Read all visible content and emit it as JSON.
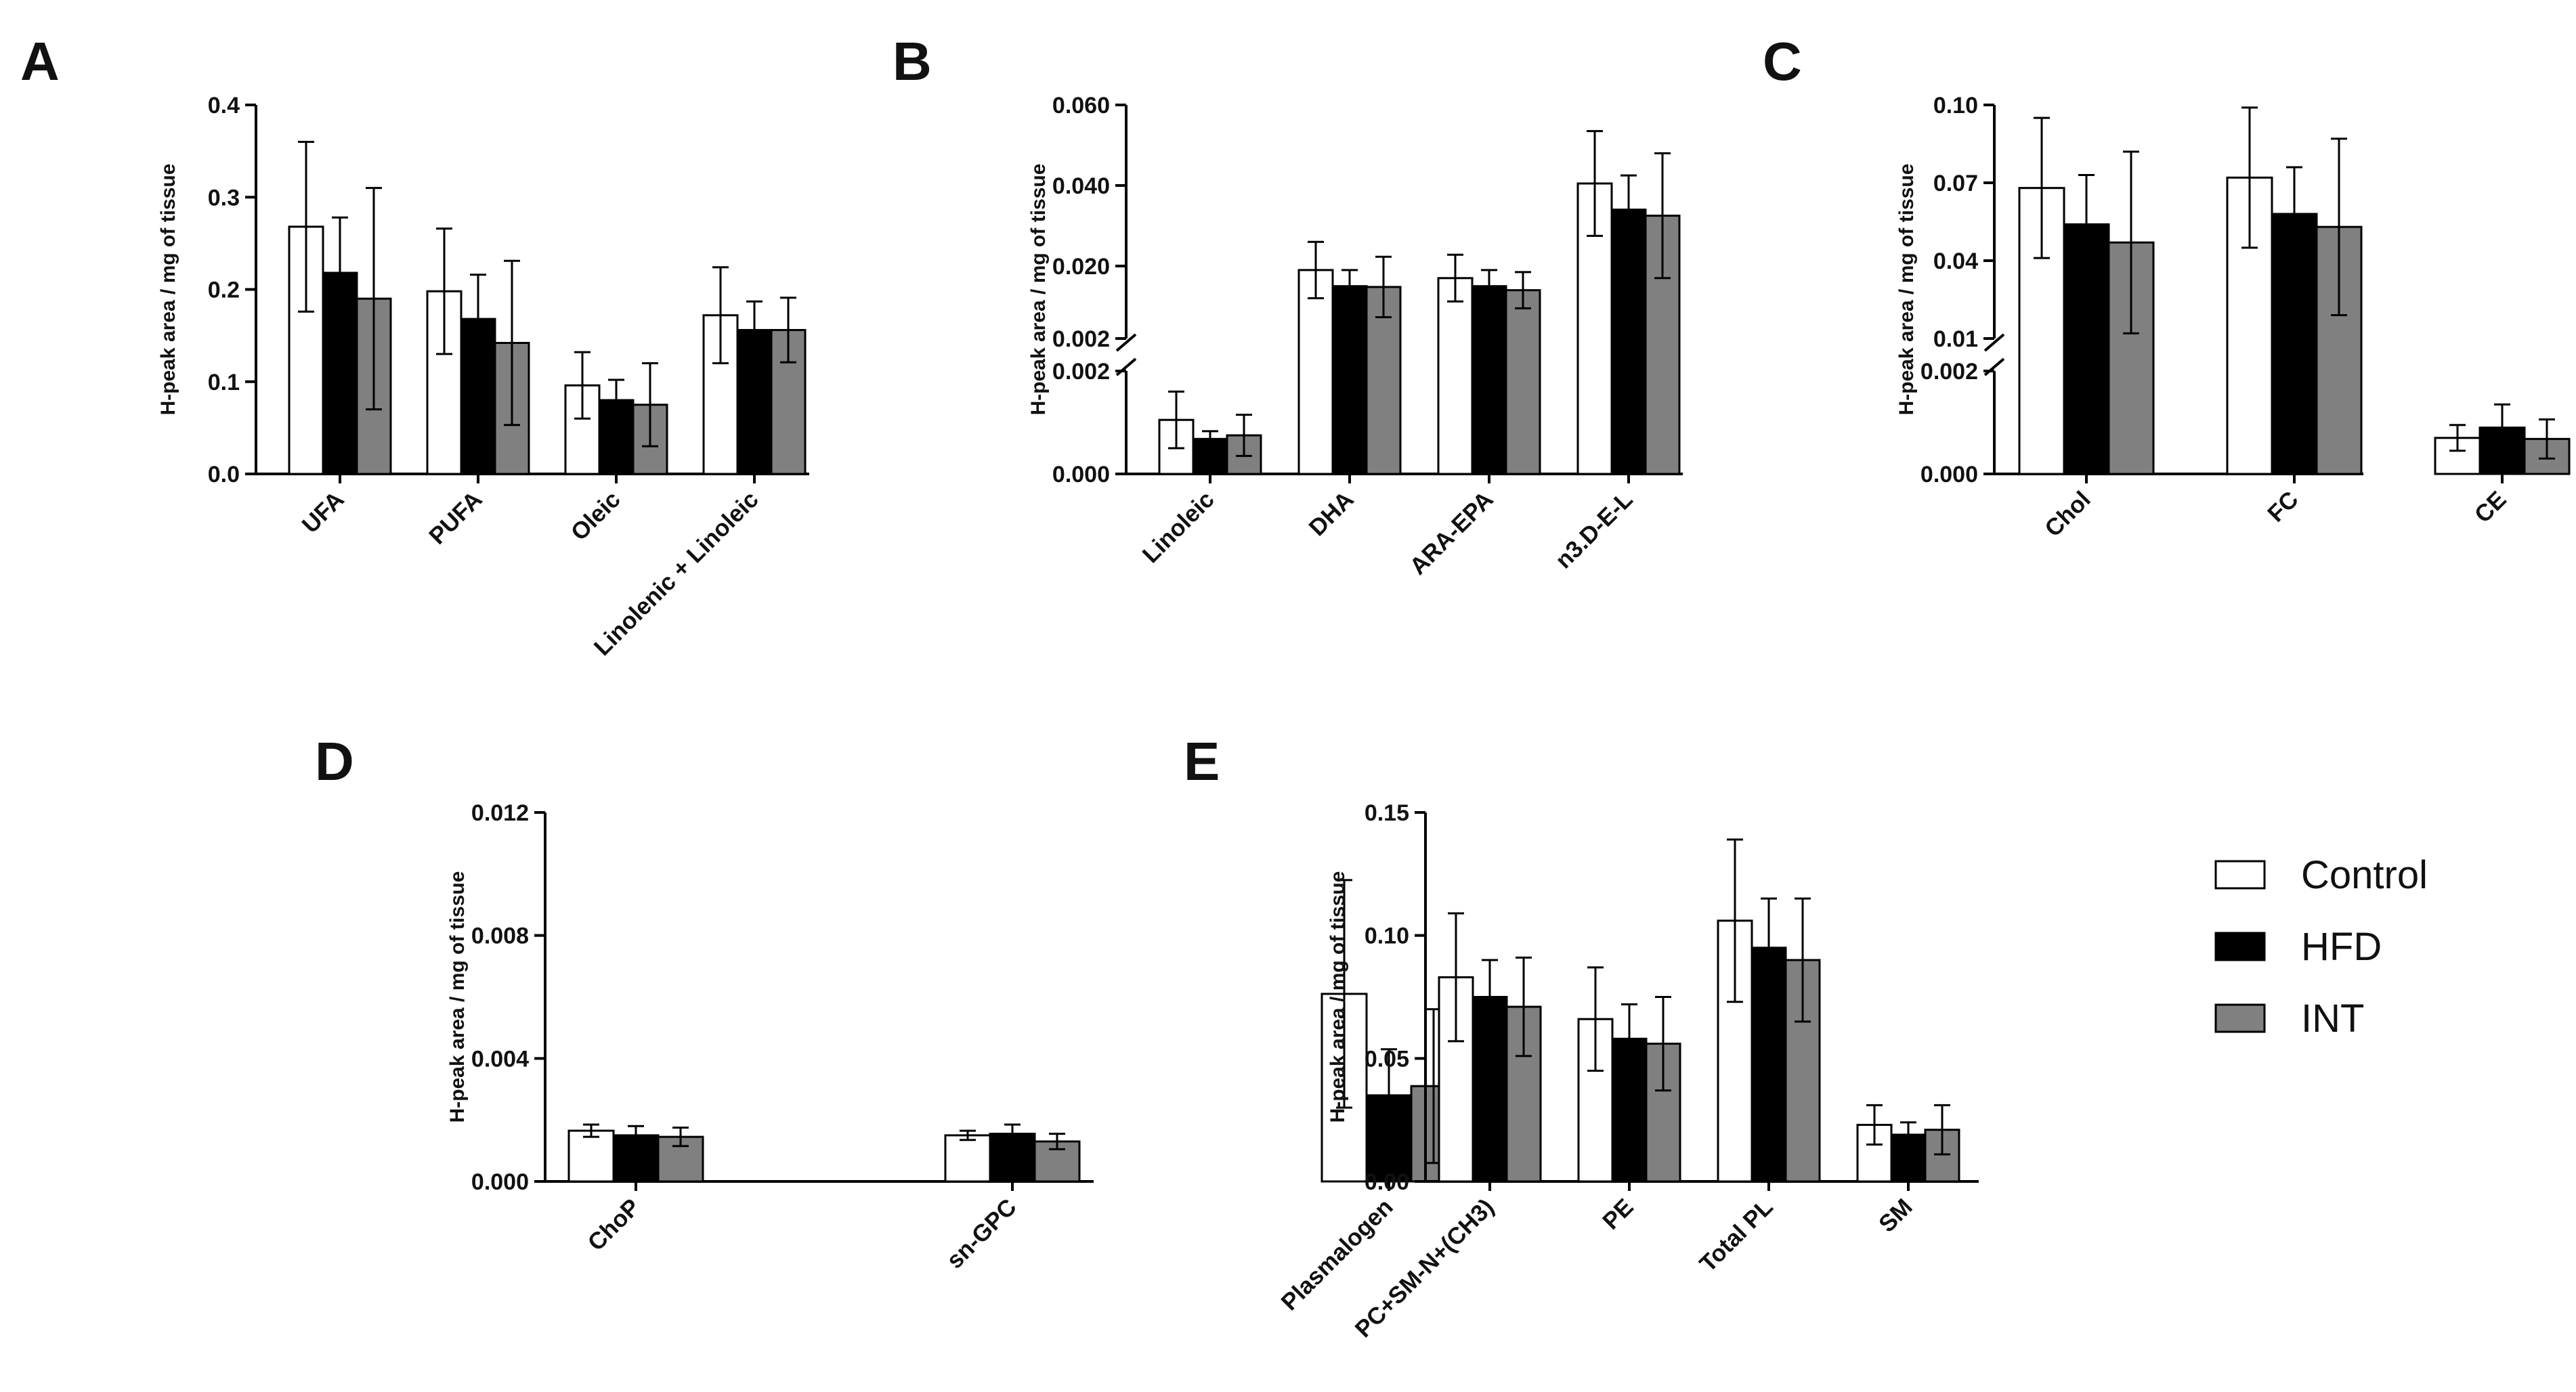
{
  "legend": [
    {
      "name": "Control",
      "color": "#ffffff"
    },
    {
      "name": "HFD",
      "color": "#000000"
    },
    {
      "name": "INT",
      "color": "#808080"
    }
  ],
  "chart_data": [
    {
      "panel": "A",
      "type": "bar",
      "ylabel": "H-peak area / mg of tissue",
      "ylim": [
        0,
        0.4
      ],
      "yticks": [
        "0.0",
        "0.1",
        "0.2",
        "0.3",
        "0.4"
      ],
      "categories": [
        "UFA",
        "PUFA",
        "Oleic",
        "Linolenic + Linoleic"
      ],
      "series": [
        {
          "name": "Control",
          "values": [
            0.268,
            0.198,
            0.096,
            0.172
          ],
          "errors": [
            0.092,
            0.068,
            0.036,
            0.052
          ]
        },
        {
          "name": "HFD",
          "values": [
            0.218,
            0.168,
            0.08,
            0.156
          ],
          "errors": [
            0.06,
            0.048,
            0.022,
            0.031
          ]
        },
        {
          "name": "INT",
          "values": [
            0.19,
            0.142,
            0.075,
            0.156
          ],
          "errors": [
            0.12,
            0.089,
            0.045,
            0.035
          ]
        }
      ]
    },
    {
      "panel": "B",
      "type": "bar",
      "ylabel": "H-peak area / mg of tissue",
      "axis_break": {
        "lower": [
          0,
          0.002
        ],
        "upper": [
          0.002,
          0.06
        ]
      },
      "yticks_lower": [
        "0.000",
        "0.002"
      ],
      "yticks_upper": [
        "0.002",
        "0.020",
        "0.040",
        "0.060"
      ],
      "categories": [
        "Linoleic",
        "DHA",
        "ARA-EPA",
        "n3.D-E-L"
      ],
      "series": [
        {
          "name": "Control",
          "values": [
            0.00105,
            0.019,
            0.017,
            0.0405
          ],
          "errors": [
            0.00055,
            0.007,
            0.0058,
            0.013
          ]
        },
        {
          "name": "HFD",
          "values": [
            0.00068,
            0.015,
            0.015,
            0.034
          ],
          "errors": [
            0.00015,
            0.004,
            0.004,
            0.0085
          ]
        },
        {
          "name": "INT",
          "values": [
            0.00075,
            0.0148,
            0.014,
            0.0325
          ],
          "errors": [
            0.0004,
            0.0075,
            0.0045,
            0.0155
          ]
        }
      ]
    },
    {
      "panel": "C",
      "type": "bar",
      "ylabel": "H-peak area / mg of tissue",
      "axis_break": {
        "lower": [
          0,
          0.002
        ],
        "upper": [
          0.01,
          0.1
        ]
      },
      "yticks_lower": [
        "0.000",
        "0.002"
      ],
      "yticks_upper": [
        "0.01",
        "0.04",
        "0.07",
        "0.10"
      ],
      "categories": [
        "Chol",
        "FC",
        "CE"
      ],
      "series": [
        {
          "name": "Control",
          "values": [
            0.068,
            0.072,
            0.0007
          ],
          "errors": [
            0.027,
            0.027,
            0.00025
          ]
        },
        {
          "name": "HFD",
          "values": [
            0.054,
            0.058,
            0.0009
          ],
          "errors": [
            0.019,
            0.018,
            0.00045
          ]
        },
        {
          "name": "INT",
          "values": [
            0.047,
            0.053,
            0.00068
          ],
          "errors": [
            0.035,
            0.034,
            0.00038
          ]
        }
      ]
    },
    {
      "panel": "D",
      "type": "bar",
      "ylabel": "H-peak area / mg of tissue",
      "ylim": [
        0,
        0.012
      ],
      "yticks": [
        "0.000",
        "0.004",
        "0.008",
        "0.012"
      ],
      "categories": [
        "ChoP",
        "sn-GPC",
        "Plasmalogen"
      ],
      "series": [
        {
          "name": "Control",
          "values": [
            0.00165,
            0.0015,
            0.0061
          ],
          "errors": [
            0.0002,
            0.00015,
            0.0037
          ]
        },
        {
          "name": "HFD",
          "values": [
            0.0015,
            0.00155,
            0.0028
          ],
          "errors": [
            0.0003,
            0.0003,
            0.0015
          ]
        },
        {
          "name": "INT",
          "values": [
            0.00145,
            0.0013,
            0.0031
          ],
          "errors": [
            0.0003,
            0.00025,
            0.0025
          ]
        }
      ]
    },
    {
      "panel": "E",
      "type": "bar",
      "ylabel": "H-peak area / mg of tissue",
      "ylim": [
        0,
        0.15
      ],
      "yticks": [
        "0.00",
        "0.05",
        "0.10",
        "0.15"
      ],
      "categories": [
        "PC+SM-N+(CH3)",
        "PE",
        "Total PL",
        "SM"
      ],
      "series": [
        {
          "name": "Control",
          "values": [
            0.083,
            0.066,
            0.106,
            0.023
          ],
          "errors": [
            0.026,
            0.021,
            0.033,
            0.008
          ]
        },
        {
          "name": "HFD",
          "values": [
            0.075,
            0.058,
            0.095,
            0.019
          ],
          "errors": [
            0.015,
            0.014,
            0.02,
            0.005
          ]
        },
        {
          "name": "INT",
          "values": [
            0.071,
            0.056,
            0.09,
            0.021
          ],
          "errors": [
            0.02,
            0.019,
            0.025,
            0.01
          ]
        }
      ]
    }
  ]
}
